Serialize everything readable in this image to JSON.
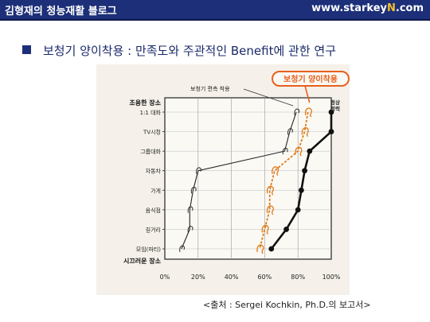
{
  "header": {
    "left_title": "김형재의 청능재활 블로그",
    "site_prefix": "www.starkey",
    "site_accent": "N",
    "site_suffix": ".com",
    "bg_color": "#1c2f78",
    "accent_color": "#f2c12e"
  },
  "slide": {
    "bullet_icon": "square-bullet",
    "title": "보청기 양이착용 : 만족도와 주관적인 Benefit에 관한 연구",
    "caption": "<출처 : Sergei Kochkin, Ph.D.의 보고서>"
  },
  "chart_data": {
    "type": "line",
    "x_ticks": [
      "0%",
      "20%",
      "40%",
      "60%",
      "80%",
      "100%"
    ],
    "xlim": [
      0,
      100
    ],
    "categories": [
      "1:1 대화",
      "TV시청",
      "그룹대화",
      "자동차",
      "가게",
      "음식점",
      "길거리",
      "모임(파티)"
    ],
    "y_top_label": "조용한 장소",
    "y_bottom_label": "시끄러운 장소",
    "series": [
      {
        "name": "보청기 편측 착용",
        "values": [
          79,
          75,
          72,
          20,
          17,
          15,
          15,
          10
        ],
        "color": "#222222",
        "style": "thin"
      },
      {
        "name": "보청기 양이착용",
        "values": [
          86,
          84,
          80,
          66,
          63,
          63,
          60,
          57
        ],
        "color": "#e07a18",
        "style": "dashed"
      },
      {
        "name": "정상 청력",
        "values": [
          100,
          100,
          87,
          84,
          82,
          80,
          73,
          64
        ],
        "color": "#111111",
        "style": "bold"
      }
    ],
    "highlight_label": "보청기 양이착용",
    "highlight_color": "#e8601c"
  }
}
